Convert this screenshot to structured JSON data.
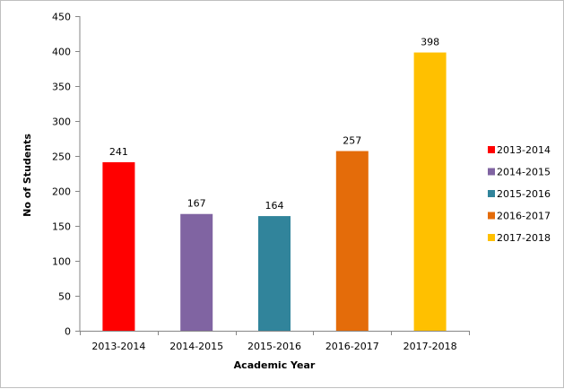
{
  "chart_data": {
    "type": "bar",
    "title": "",
    "xlabel": "Academic Year",
    "ylabel": "No of Students",
    "categories": [
      "2013-2014",
      "2014-2015",
      "2015-2016",
      "2016-2017",
      "2017-2018"
    ],
    "values": [
      241,
      167,
      164,
      257,
      398
    ],
    "colors": [
      "#ff0000",
      "#8064a2",
      "#31849b",
      "#e46c0a",
      "#ffc000"
    ],
    "ylim": [
      0,
      450
    ],
    "yticks": [
      0,
      50,
      100,
      150,
      200,
      250,
      300,
      350,
      400,
      450
    ],
    "grid": false,
    "legend": {
      "position": "right",
      "entries": [
        "2013-2014",
        "2014-2015",
        "2015-2016",
        "2016-2017",
        "2017-2018"
      ]
    }
  }
}
